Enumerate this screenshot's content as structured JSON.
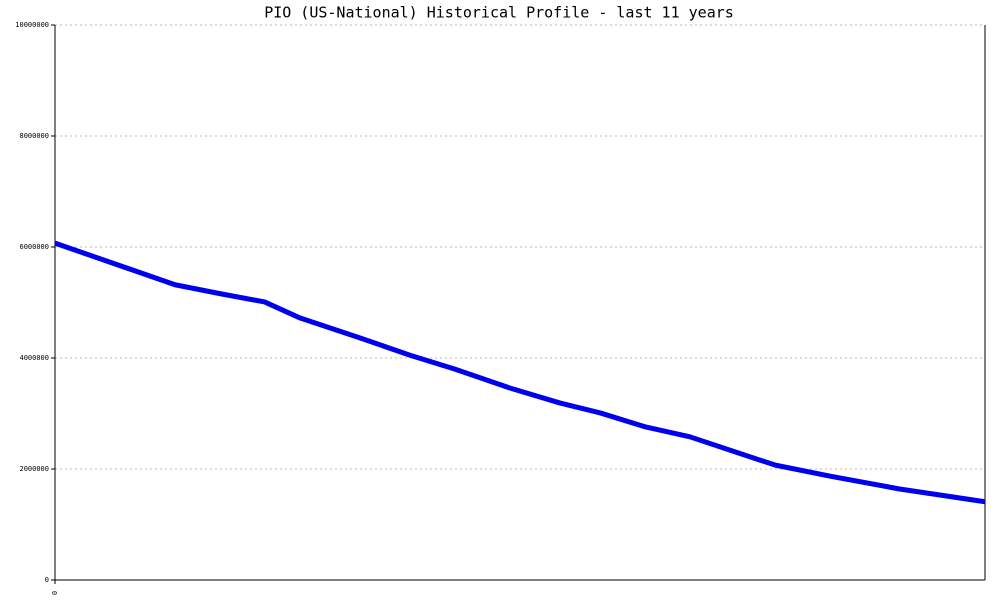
{
  "chart_data": {
    "type": "line",
    "title": "PIO (US-National) Historical Profile - last 11 years",
    "x": [
      0,
      1.42,
      1.95,
      2.48,
      2.9,
      3.61,
      4.2,
      4.73,
      5.38,
      5.97,
      6.45,
      6.98,
      7.51,
      8.04,
      8.52,
      9.17,
      9.99,
      11
    ],
    "series": [
      {
        "color": "#0000ee",
        "values": [
          6070000,
          5320000,
          5160000,
          5010000,
          4720000,
          4360000,
          4050000,
          3800000,
          3460000,
          3190000,
          3010000,
          2760000,
          2580000,
          2310000,
          2070000,
          1870000,
          1640000,
          1410000
        ]
      }
    ],
    "xlim": [
      0,
      11
    ],
    "xticks": [
      0
    ],
    "ylim": [
      0,
      10000000
    ],
    "yticks": [
      0,
      2000000,
      4000000,
      6000000,
      8000000,
      10000000
    ],
    "grid": true
  }
}
